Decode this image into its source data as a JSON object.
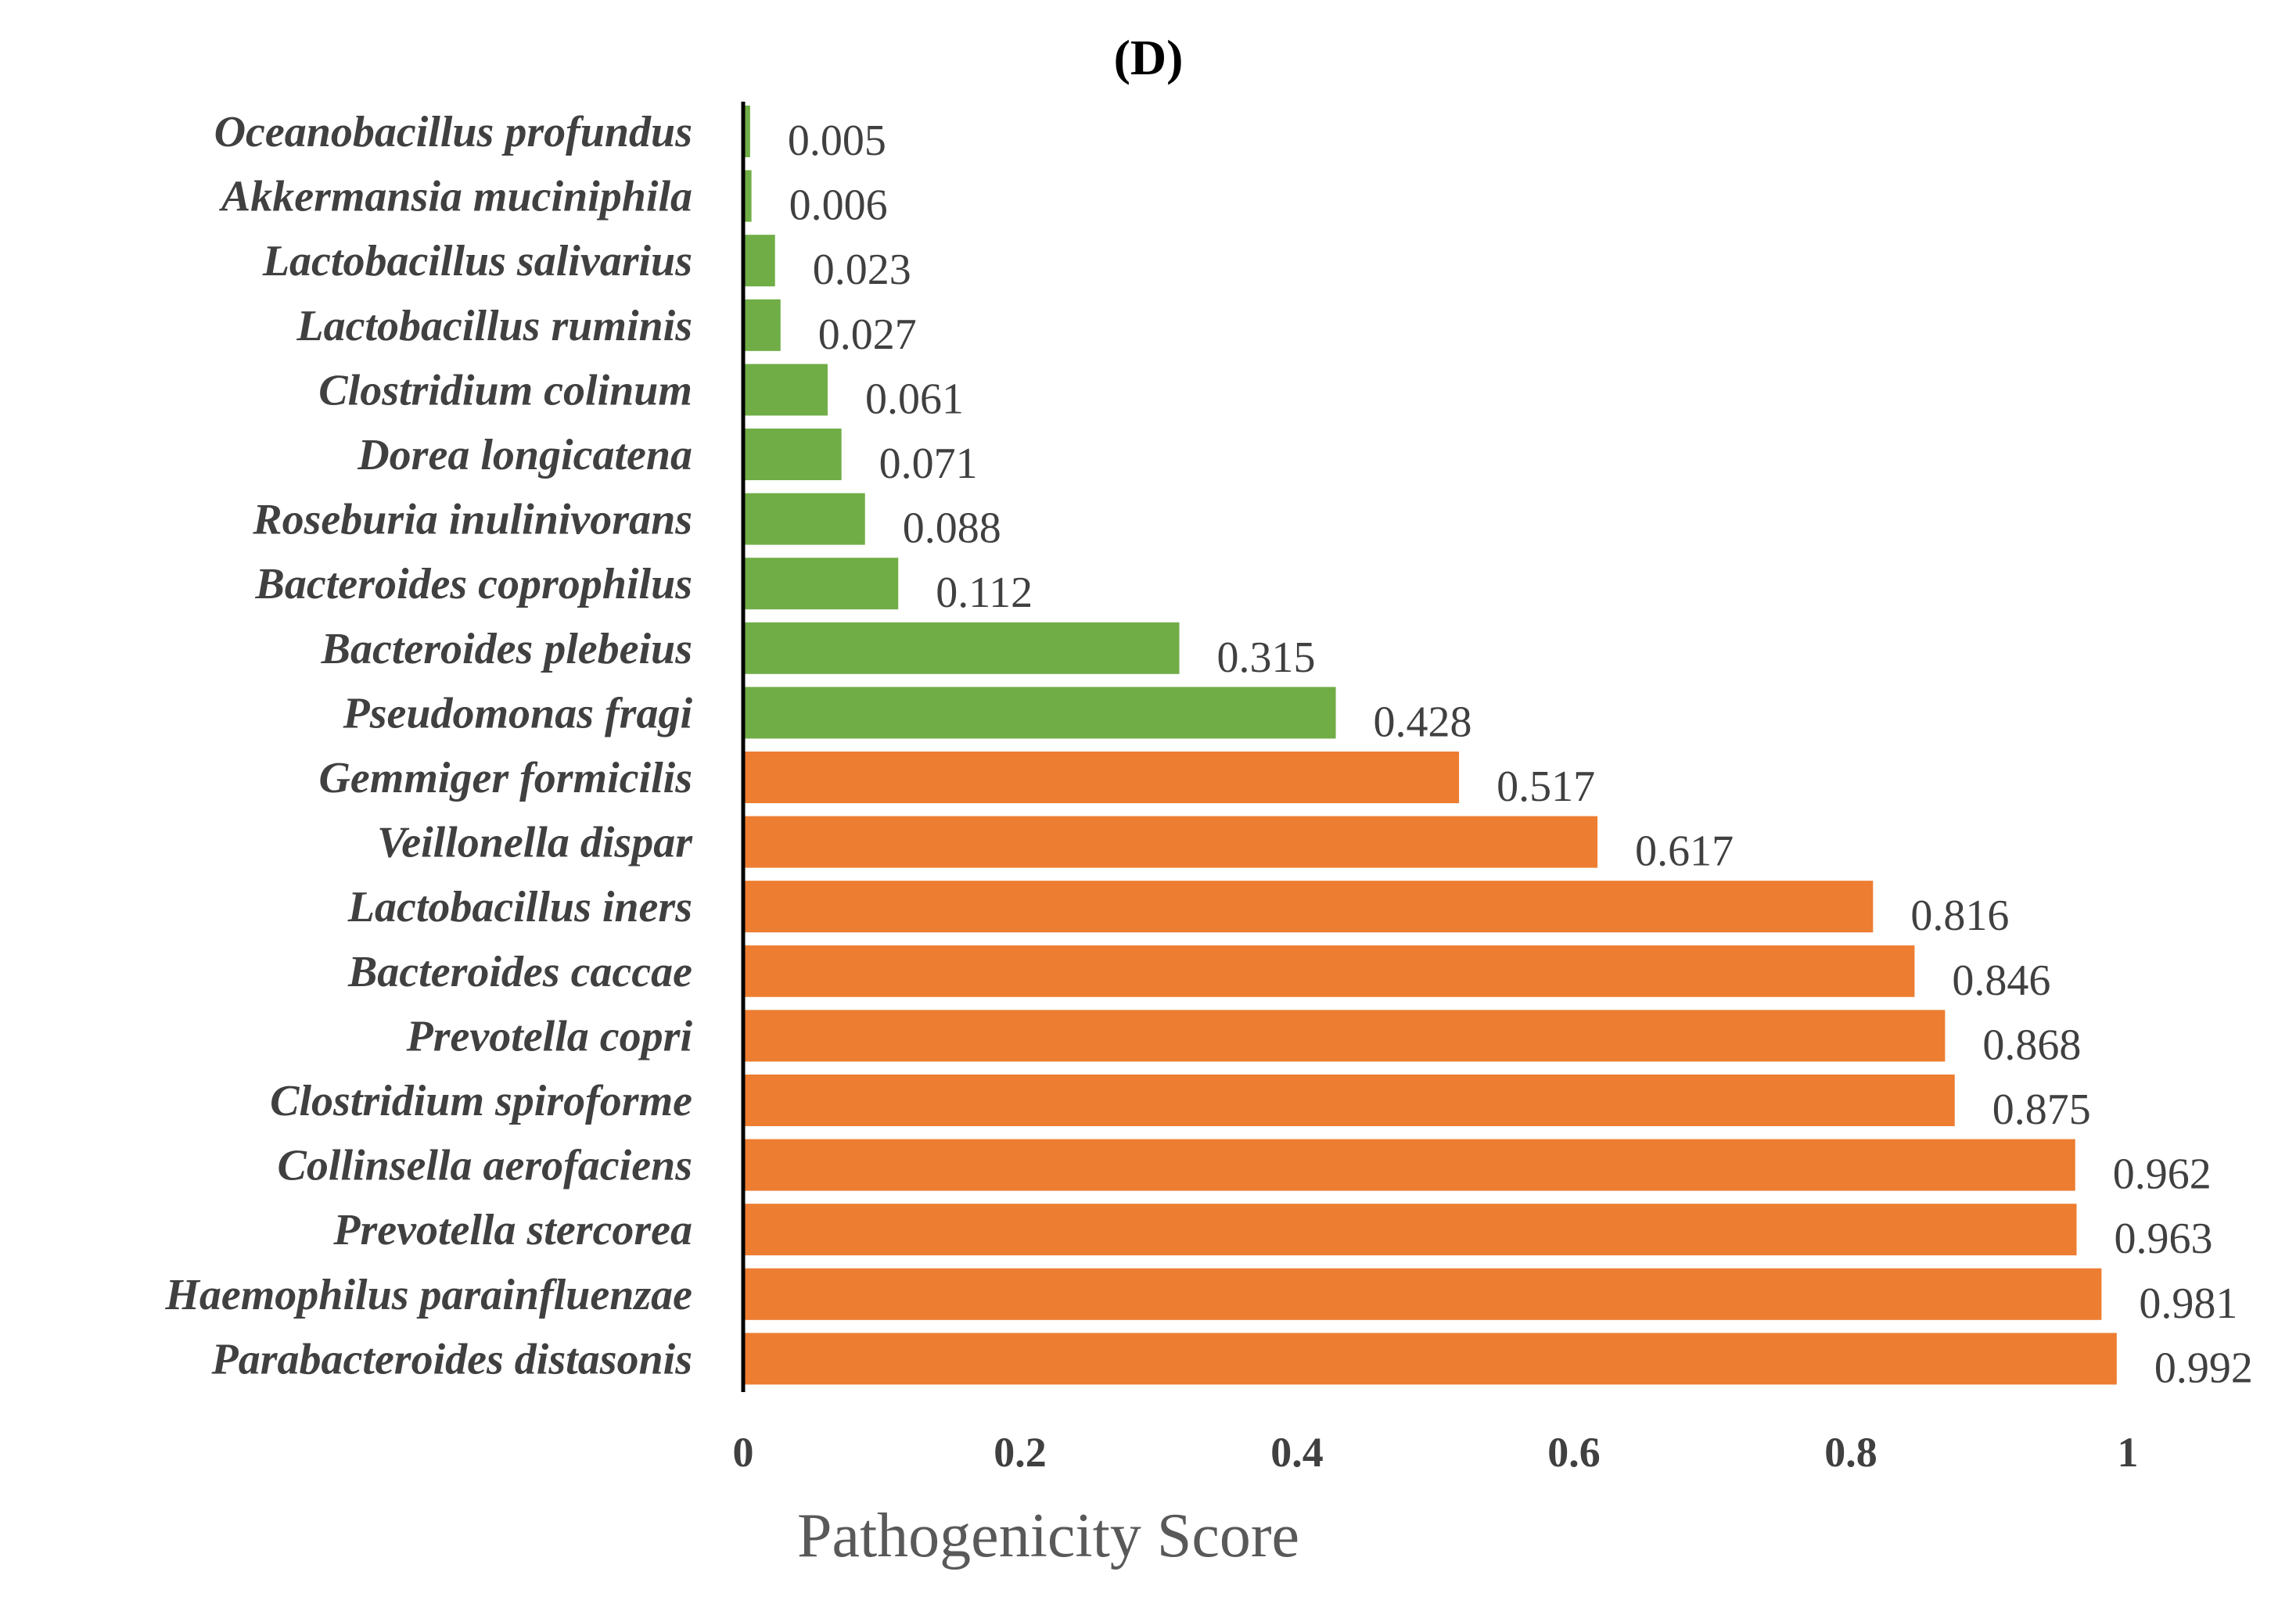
{
  "panel_label": "(D)",
  "chart_data": {
    "type": "bar",
    "orientation": "horizontal",
    "title": "(D)",
    "xlabel": "Pathogenicity Score",
    "ylabel": "",
    "xlim": [
      0,
      1
    ],
    "xticks": [
      0,
      0.2,
      0.4,
      0.6,
      0.8,
      1
    ],
    "xtick_labels": [
      "0",
      "0.2",
      "0.4",
      "0.6",
      "0.8",
      "1"
    ],
    "grid": false,
    "legend": "none",
    "colors": {
      "low": "#70AD47",
      "high": "#ED7D31",
      "axis": "#000000",
      "label": "#404040"
    },
    "categories": [
      "Oceanobacillus profundus",
      "Akkermansia muciniphila",
      "Lactobacillus salivarius",
      "Lactobacillus ruminis",
      "Clostridium colinum",
      "Dorea longicatena",
      "Roseburia inulinivorans",
      "Bacteroides coprophilus",
      "Bacteroides plebeius",
      "Pseudomonas fragi",
      "Gemmiger formicilis",
      "Veillonella dispar",
      "Lactobacillus iners",
      "Bacteroides caccae",
      "Prevotella copri",
      "Clostridium spiroforme",
      "Collinsella aerofaciens",
      "Prevotella stercorea",
      "Haemophilus parainfluenzae",
      "Parabacteroides distasonis"
    ],
    "values": [
      0.005,
      0.006,
      0.023,
      0.027,
      0.061,
      0.071,
      0.088,
      0.112,
      0.315,
      0.428,
      0.517,
      0.617,
      0.816,
      0.846,
      0.868,
      0.875,
      0.962,
      0.963,
      0.981,
      0.992
    ],
    "value_labels": [
      "0.005",
      "0.006",
      "0.023",
      "0.027",
      "0.061",
      "0.071",
      "0.088",
      "0.112",
      "0.315",
      "0.428",
      "0.517",
      "0.617",
      "0.816",
      "0.846",
      "0.868",
      "0.875",
      "0.962",
      "0.963",
      "0.981",
      "0.992"
    ],
    "group": [
      "low",
      "low",
      "low",
      "low",
      "low",
      "low",
      "low",
      "low",
      "low",
      "low",
      "high",
      "high",
      "high",
      "high",
      "high",
      "high",
      "high",
      "high",
      "high",
      "high"
    ]
  }
}
